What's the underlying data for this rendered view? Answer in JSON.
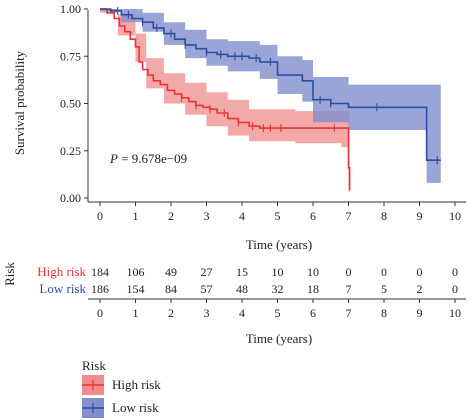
{
  "chart_data": {
    "type": "line",
    "subtype": "kaplan-meier",
    "ylabel": "Survival probability",
    "xlabel": "Time (years)",
    "xlim": [
      0,
      10
    ],
    "ylim": [
      0,
      1
    ],
    "xticks": [
      "0",
      "1",
      "2",
      "3",
      "4",
      "5",
      "6",
      "7",
      "8",
      "9",
      "10"
    ],
    "yticks": [
      "0.00",
      "0.25",
      "0.50",
      "0.75",
      "1.00"
    ],
    "annotation": {
      "p_label": "P",
      "p_value": " = 9.678e−09"
    },
    "grid": false,
    "series": [
      {
        "name": "High risk",
        "color": "#e8343b",
        "fill": "#f08c8c",
        "steps": [
          [
            0,
            1.0
          ],
          [
            0.2,
            0.98
          ],
          [
            0.4,
            0.95
          ],
          [
            0.55,
            0.91
          ],
          [
            0.7,
            0.88
          ],
          [
            0.85,
            0.84
          ],
          [
            1.0,
            0.8
          ],
          [
            1.1,
            0.72
          ],
          [
            1.2,
            0.68
          ],
          [
            1.35,
            0.65
          ],
          [
            1.5,
            0.62
          ],
          [
            1.7,
            0.6
          ],
          [
            1.9,
            0.57
          ],
          [
            2.1,
            0.55
          ],
          [
            2.3,
            0.53
          ],
          [
            2.5,
            0.51
          ],
          [
            2.7,
            0.49
          ],
          [
            2.9,
            0.48
          ],
          [
            3.1,
            0.47
          ],
          [
            3.3,
            0.45
          ],
          [
            3.6,
            0.42
          ],
          [
            3.9,
            0.4
          ],
          [
            4.2,
            0.38
          ],
          [
            4.5,
            0.37
          ],
          [
            6.8,
            0.37
          ],
          [
            7.0,
            0.16
          ],
          [
            7.03,
            0.16
          ],
          [
            7.03,
            0.04
          ]
        ],
        "lower": [
          [
            0,
            0.98
          ],
          [
            0.5,
            0.86
          ],
          [
            1.0,
            0.72
          ],
          [
            1.3,
            0.58
          ],
          [
            1.8,
            0.5
          ],
          [
            2.4,
            0.44
          ],
          [
            3.0,
            0.38
          ],
          [
            3.6,
            0.33
          ],
          [
            4.2,
            0.3
          ],
          [
            5.5,
            0.29
          ],
          [
            6.8,
            0.27
          ],
          [
            7.0,
            0.03
          ]
        ],
        "upper": [
          [
            0,
            1.0
          ],
          [
            0.5,
            0.97
          ],
          [
            1.0,
            0.87
          ],
          [
            1.3,
            0.74
          ],
          [
            1.8,
            0.66
          ],
          [
            2.4,
            0.61
          ],
          [
            3.0,
            0.56
          ],
          [
            3.6,
            0.52
          ],
          [
            4.2,
            0.47
          ],
          [
            5.5,
            0.46
          ],
          [
            6.8,
            0.46
          ],
          [
            7.0,
            0.46
          ]
        ],
        "censor_times": [
          2.3,
          2.7,
          3.1,
          3.5,
          3.9,
          4.3,
          4.6,
          4.8,
          5.1,
          6.6
        ]
      },
      {
        "name": "Low risk",
        "color": "#2e4fa1",
        "fill": "#7e8fcc",
        "steps": [
          [
            0,
            1.0
          ],
          [
            0.3,
            0.99
          ],
          [
            0.6,
            0.97
          ],
          [
            0.9,
            0.95
          ],
          [
            1.2,
            0.93
          ],
          [
            1.5,
            0.9
          ],
          [
            1.8,
            0.87
          ],
          [
            2.1,
            0.84
          ],
          [
            2.4,
            0.81
          ],
          [
            2.7,
            0.79
          ],
          [
            3.0,
            0.77
          ],
          [
            3.3,
            0.76
          ],
          [
            3.6,
            0.75
          ],
          [
            4.2,
            0.74
          ],
          [
            4.5,
            0.72
          ],
          [
            5.0,
            0.65
          ],
          [
            5.7,
            0.62
          ],
          [
            6.0,
            0.52
          ],
          [
            6.5,
            0.5
          ],
          [
            7.0,
            0.48
          ],
          [
            9.2,
            0.48
          ],
          [
            9.2,
            0.2
          ],
          [
            9.6,
            0.2
          ]
        ],
        "lower": [
          [
            0,
            0.99
          ],
          [
            0.6,
            0.93
          ],
          [
            1.2,
            0.88
          ],
          [
            1.8,
            0.81
          ],
          [
            2.4,
            0.74
          ],
          [
            3.0,
            0.7
          ],
          [
            3.6,
            0.67
          ],
          [
            4.5,
            0.63
          ],
          [
            5.0,
            0.55
          ],
          [
            5.7,
            0.51
          ],
          [
            6.0,
            0.4
          ],
          [
            7.0,
            0.36
          ],
          [
            9.2,
            0.36
          ],
          [
            9.2,
            0.08
          ],
          [
            9.6,
            0.08
          ]
        ],
        "upper": [
          [
            0,
            1.0
          ],
          [
            0.6,
            1.0
          ],
          [
            1.2,
            0.98
          ],
          [
            1.8,
            0.93
          ],
          [
            2.4,
            0.89
          ],
          [
            3.0,
            0.84
          ],
          [
            3.6,
            0.83
          ],
          [
            4.5,
            0.81
          ],
          [
            5.0,
            0.75
          ],
          [
            5.7,
            0.73
          ],
          [
            6.0,
            0.64
          ],
          [
            7.0,
            0.6
          ],
          [
            9.2,
            0.6
          ],
          [
            9.6,
            0.6
          ]
        ],
        "censor_times": [
          0.5,
          0.8,
          1.2,
          1.6,
          2.0,
          2.4,
          3.0,
          3.4,
          3.8,
          4.0,
          4.4,
          4.8,
          6.2,
          6.5,
          7.8,
          9.5
        ]
      }
    ]
  },
  "risk_table": {
    "title": "Risk",
    "rows": [
      {
        "label": "High risk",
        "color": "#e8343b",
        "values": [
          "184",
          "106",
          "49",
          "27",
          "15",
          "10",
          "10",
          "0",
          "0",
          "0",
          "0"
        ]
      },
      {
        "label": "Low risk",
        "color": "#2e4fa1",
        "values": [
          "186",
          "154",
          "84",
          "57",
          "48",
          "32",
          "18",
          "7",
          "5",
          "2",
          "0"
        ]
      }
    ],
    "xticks": [
      "0",
      "1",
      "2",
      "3",
      "4",
      "5",
      "6",
      "7",
      "8",
      "9",
      "10"
    ],
    "xlabel": "Time (years)"
  },
  "legend": {
    "title": "Risk",
    "items": [
      {
        "label": "High risk",
        "color": "#e8343b",
        "fill": "#f08c8c"
      },
      {
        "label": "Low risk",
        "color": "#2e4fa1",
        "fill": "#7e8fcc"
      }
    ]
  }
}
